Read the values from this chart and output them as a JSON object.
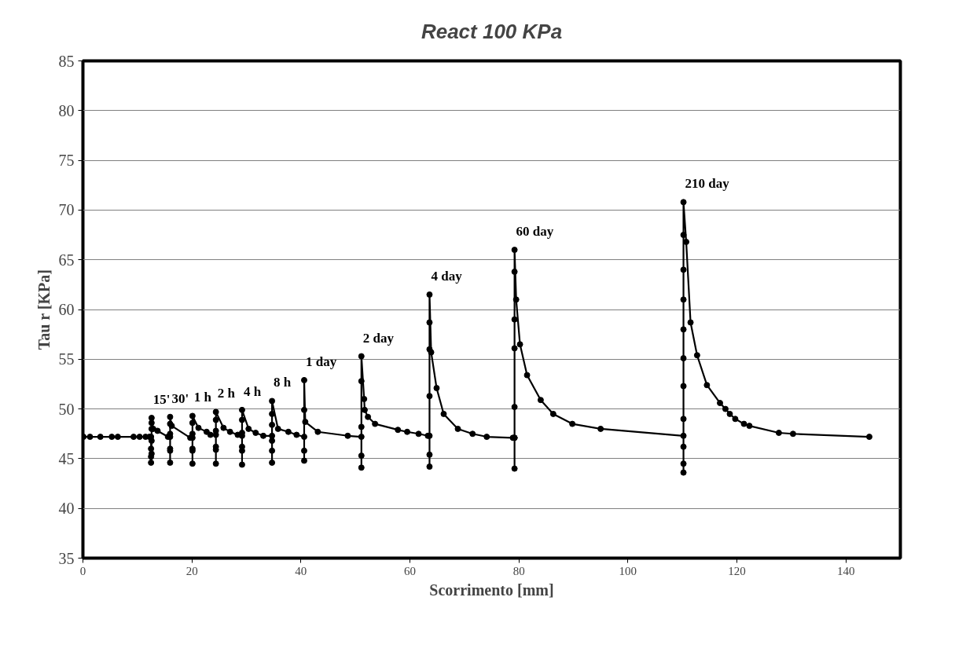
{
  "chart_data": {
    "type": "line",
    "title": "React 100 KPa",
    "xlabel": "Scorrimento [mm]",
    "ylabel": "Tau r [KPa]",
    "xlim": [
      0,
      150
    ],
    "xticks": [
      0,
      20,
      40,
      60,
      80,
      100,
      120,
      140
    ],
    "ylim": [
      35,
      85
    ],
    "yticks": [
      35,
      40,
      45,
      50,
      55,
      60,
      65,
      70,
      75,
      80,
      85
    ],
    "grid": "y",
    "marker": "circle",
    "line_style": "solid",
    "series": [
      {
        "color": "#000000",
        "x": [
          0.1,
          1.3,
          3.2,
          5.3,
          6.4,
          9.3,
          10.4,
          11.5,
          12.2,
          12.5,
          12.5,
          12.5,
          12.5,
          12.6,
          12.6,
          12.6,
          12.6,
          12.6,
          12.9,
          13.7,
          15.6,
          16.0,
          16.0,
          16.0,
          16.0,
          16.0,
          16.0,
          16.0,
          16.3,
          19.7,
          20.1,
          20.1,
          20.1,
          20.1,
          20.1,
          20.1,
          20.1,
          21.2,
          22.7,
          23.4,
          24.4,
          24.4,
          24.4,
          24.4,
          24.4,
          24.4,
          24.4,
          25.8,
          27.0,
          28.4,
          29.2,
          29.2,
          29.2,
          29.2,
          29.2,
          29.2,
          29.2,
          30.4,
          31.7,
          33.1,
          34.7,
          34.7,
          34.7,
          34.7,
          34.7,
          34.7,
          34.7,
          35.8,
          37.7,
          39.2,
          40.6,
          40.6,
          40.6,
          40.6,
          40.6,
          40.8,
          43.1,
          48.6,
          51.1,
          51.1,
          51.1,
          51.1,
          51.1,
          51.1,
          51.6,
          51.7,
          52.3,
          53.6,
          57.8,
          59.5,
          61.6,
          63.3,
          63.6,
          63.6,
          63.6,
          63.6,
          63.6,
          63.6,
          63.6,
          63.9,
          64.9,
          66.2,
          68.8,
          71.5,
          74.1,
          78.9,
          79.2,
          79.2,
          79.2,
          79.2,
          79.2,
          79.2,
          79.2,
          79.2,
          79.5,
          80.2,
          81.5,
          84.0,
          86.3,
          89.8,
          95.0,
          110.2,
          110.2,
          110.2,
          110.2,
          110.2,
          110.2,
          110.2,
          110.2,
          110.2,
          110.2,
          110.2,
          110.2,
          110.7,
          111.5,
          112.7,
          114.5,
          116.9,
          117.9,
          118.7,
          119.7,
          121.3,
          122.3,
          127.7,
          130.3,
          144.3
        ],
        "values": [
          47.2,
          47.2,
          47.2,
          47.2,
          47.2,
          47.2,
          47.2,
          47.2,
          47.2,
          47.2,
          46.0,
          45.2,
          44.6,
          45.5,
          46.8,
          48.0,
          48.6,
          49.1,
          48.0,
          47.8,
          47.2,
          47.2,
          45.8,
          44.6,
          46.0,
          47.5,
          48.5,
          49.2,
          48.3,
          47.1,
          47.1,
          45.8,
          44.5,
          46.0,
          47.5,
          48.6,
          49.3,
          48.1,
          47.7,
          47.4,
          47.4,
          45.9,
          44.5,
          46.2,
          47.8,
          48.9,
          49.7,
          48.1,
          47.7,
          47.4,
          47.3,
          45.8,
          44.4,
          46.2,
          47.6,
          48.9,
          49.9,
          48.0,
          47.6,
          47.3,
          47.3,
          45.8,
          44.6,
          46.8,
          48.4,
          49.5,
          50.8,
          48.0,
          47.7,
          47.4,
          47.2,
          45.8,
          44.8,
          49.9,
          52.9,
          48.7,
          47.7,
          47.3,
          47.2,
          45.3,
          44.1,
          48.2,
          52.8,
          55.3,
          51.0,
          49.9,
          49.2,
          48.5,
          47.9,
          47.7,
          47.5,
          47.3,
          47.3,
          45.4,
          44.2,
          51.3,
          56.0,
          58.7,
          61.5,
          55.7,
          52.1,
          49.5,
          48.0,
          47.5,
          47.2,
          47.1,
          47.1,
          44.0,
          47.1,
          50.2,
          56.1,
          59.0,
          63.8,
          66.0,
          61.0,
          56.5,
          53.4,
          50.9,
          49.5,
          48.5,
          48.0,
          47.3,
          44.5,
          43.6,
          46.2,
          49.0,
          52.3,
          55.1,
          58.0,
          61.0,
          64.0,
          67.5,
          70.8,
          66.8,
          58.7,
          55.4,
          52.4,
          50.6,
          50.0,
          49.5,
          49.0,
          48.5,
          48.3,
          47.6,
          47.5,
          47.2
        ]
      }
    ],
    "annotations": [
      {
        "text": "15'",
        "x": 12.6,
        "y": 49.1
      },
      {
        "text": "30'",
        "x": 16.0,
        "y": 49.2
      },
      {
        "text": "1 h",
        "x": 20.1,
        "y": 49.3
      },
      {
        "text": "2 h",
        "x": 24.4,
        "y": 49.7
      },
      {
        "text": "4 h",
        "x": 29.2,
        "y": 49.9
      },
      {
        "text": "8 h",
        "x": 34.7,
        "y": 50.8
      },
      {
        "text": "1 day",
        "x": 40.6,
        "y": 52.9
      },
      {
        "text": "2 day",
        "x": 51.1,
        "y": 55.3
      },
      {
        "text": "4 day",
        "x": 63.6,
        "y": 61.5
      },
      {
        "text": "60 day",
        "x": 79.2,
        "y": 66.0
      },
      {
        "text": "210 day",
        "x": 110.2,
        "y": 70.8
      }
    ]
  }
}
